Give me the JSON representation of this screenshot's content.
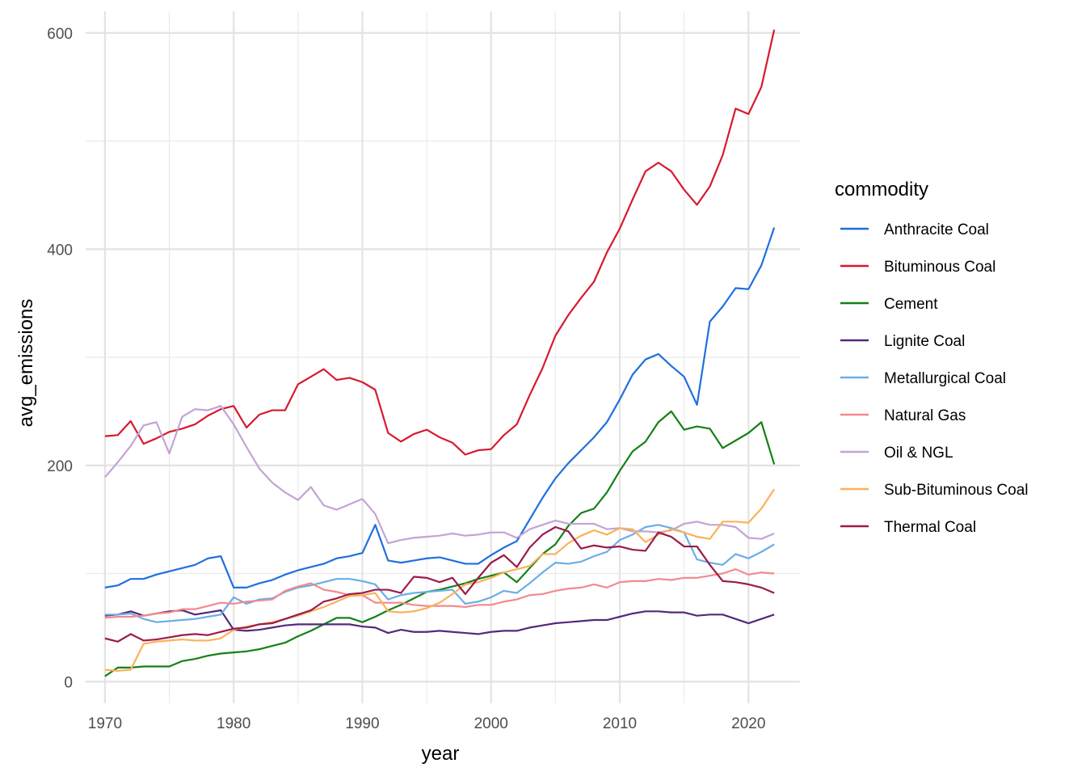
{
  "chart_data": {
    "type": "line",
    "title": "",
    "xlabel": "year",
    "ylabel": "avg_emissions",
    "xlim": [
      1968.5,
      2024
    ],
    "ylim": [
      -20,
      620
    ],
    "x_ticks": [
      1970,
      1980,
      1990,
      2000,
      2010,
      2020
    ],
    "x_tick_labels": [
      "1970",
      "1980",
      "1990",
      "2000",
      "2010",
      "2020"
    ],
    "y_ticks": [
      0,
      200,
      400,
      600
    ],
    "y_tick_labels": [
      "0",
      "200",
      "400",
      "600"
    ],
    "grid": true,
    "legend": {
      "title": "commodity",
      "position": "right"
    },
    "x": [
      1970,
      1971,
      1972,
      1973,
      1974,
      1975,
      1976,
      1977,
      1978,
      1979,
      1980,
      1981,
      1982,
      1983,
      1984,
      1985,
      1986,
      1987,
      1988,
      1989,
      1990,
      1991,
      1992,
      1993,
      1994,
      1995,
      1996,
      1997,
      1998,
      1999,
      2000,
      2001,
      2002,
      2003,
      2004,
      2005,
      2006,
      2007,
      2008,
      2009,
      2010,
      2011,
      2012,
      2013,
      2014,
      2015,
      2016,
      2017,
      2018,
      2019,
      2020,
      2021,
      2022
    ],
    "series": [
      {
        "name": "Anthracite Coal",
        "color": "#1f6fde",
        "values": [
          87,
          89,
          95,
          95,
          99,
          102,
          105,
          108,
          114,
          116,
          87,
          87,
          91,
          94,
          99,
          103,
          106,
          109,
          114,
          116,
          119,
          145,
          112,
          110,
          112,
          114,
          115,
          112,
          109,
          109,
          117,
          124,
          130,
          150,
          170,
          188,
          202,
          214,
          226,
          240,
          261,
          284,
          298,
          303,
          292,
          282,
          256,
          333,
          347,
          364,
          363,
          385,
          420
        ]
      },
      {
        "name": "Bituminous Coal",
        "color": "#d7192f",
        "values": [
          227,
          228,
          241,
          220,
          225,
          231,
          234,
          238,
          246,
          252,
          255,
          235,
          247,
          251,
          251,
          275,
          282,
          289,
          279,
          281,
          277,
          270,
          230,
          222,
          229,
          233,
          226,
          221,
          210,
          214,
          215,
          228,
          238,
          265,
          290,
          320,
          339,
          355,
          370,
          397,
          419,
          446,
          472,
          480,
          472,
          455,
          441,
          458,
          487,
          530,
          525,
          550,
          603
        ]
      },
      {
        "name": "Cement",
        "color": "#168017",
        "values": [
          5,
          13,
          13,
          14,
          14,
          14,
          19,
          21,
          24,
          26,
          27,
          28,
          30,
          33,
          36,
          42,
          47,
          53,
          59,
          59,
          55,
          60,
          66,
          71,
          77,
          83,
          85,
          88,
          91,
          95,
          98,
          101,
          92,
          105,
          118,
          127,
          144,
          156,
          160,
          175,
          195,
          213,
          222,
          240,
          250,
          233,
          236,
          234,
          216,
          223,
          230,
          240,
          201
        ]
      },
      {
        "name": "Lignite Coal",
        "color": "#55287c",
        "values": [
          61,
          62,
          65,
          61,
          63,
          65,
          66,
          62,
          64,
          66,
          48,
          47,
          48,
          50,
          52,
          53,
          53,
          53,
          53,
          53,
          51,
          50,
          45,
          48,
          46,
          46,
          47,
          46,
          45,
          44,
          46,
          47,
          47,
          50,
          52,
          54,
          55,
          56,
          57,
          57,
          60,
          63,
          65,
          65,
          64,
          64,
          61,
          62,
          62,
          58,
          54,
          58,
          62
        ]
      },
      {
        "name": "Metallurgical Coal",
        "color": "#6aaee8",
        "values": [
          62,
          62,
          63,
          58,
          55,
          56,
          57,
          58,
          60,
          62,
          78,
          72,
          76,
          77,
          83,
          87,
          89,
          92,
          95,
          95,
          93,
          90,
          76,
          80,
          82,
          83,
          84,
          85,
          72,
          74,
          78,
          84,
          82,
          91,
          101,
          110,
          109,
          111,
          116,
          120,
          131,
          136,
          143,
          145,
          142,
          138,
          113,
          110,
          108,
          118,
          114,
          120,
          127
        ]
      },
      {
        "name": "Natural Gas",
        "color": "#f28a8f",
        "values": [
          59,
          60,
          60,
          61,
          63,
          64,
          67,
          67,
          70,
          73,
          72,
          74,
          75,
          76,
          84,
          88,
          91,
          85,
          83,
          80,
          80,
          73,
          73,
          73,
          71,
          70,
          70,
          70,
          69,
          71,
          71,
          74,
          76,
          80,
          81,
          84,
          86,
          87,
          90,
          87,
          92,
          93,
          93,
          95,
          94,
          96,
          96,
          98,
          100,
          104,
          99,
          101,
          100
        ]
      },
      {
        "name": "Oil & NGL",
        "color": "#c4a3d4",
        "values": [
          189,
          203,
          218,
          237,
          240,
          211,
          245,
          252,
          251,
          255,
          238,
          217,
          197,
          184,
          175,
          168,
          180,
          163,
          159,
          164,
          169,
          155,
          128,
          131,
          133,
          134,
          135,
          137,
          135,
          136,
          138,
          138,
          133,
          141,
          145,
          149,
          146,
          146,
          146,
          141,
          142,
          139,
          139,
          138,
          140,
          146,
          148,
          145,
          145,
          143,
          133,
          132,
          137
        ]
      },
      {
        "name": "Sub-Bituminous Coal",
        "color": "#fbb15a",
        "values": [
          11,
          10,
          11,
          35,
          37,
          38,
          39,
          38,
          38,
          40,
          48,
          51,
          53,
          55,
          58,
          61,
          65,
          69,
          74,
          79,
          80,
          82,
          65,
          64,
          65,
          68,
          73,
          81,
          90,
          92,
          96,
          101,
          104,
          107,
          118,
          118,
          128,
          135,
          140,
          136,
          142,
          141,
          129,
          136,
          141,
          138,
          134,
          132,
          148,
          148,
          147,
          160,
          178
        ]
      },
      {
        "name": "Thermal Coal",
        "color": "#9b1b4c",
        "values": [
          40,
          37,
          44,
          38,
          39,
          41,
          43,
          44,
          43,
          46,
          49,
          50,
          53,
          54,
          58,
          62,
          66,
          74,
          77,
          81,
          82,
          85,
          85,
          82,
          97,
          96,
          92,
          96,
          81,
          96,
          110,
          117,
          106,
          124,
          136,
          143,
          139,
          123,
          126,
          124,
          125,
          122,
          121,
          138,
          134,
          125,
          125,
          108,
          93,
          92,
          90,
          87,
          82
        ]
      }
    ]
  }
}
